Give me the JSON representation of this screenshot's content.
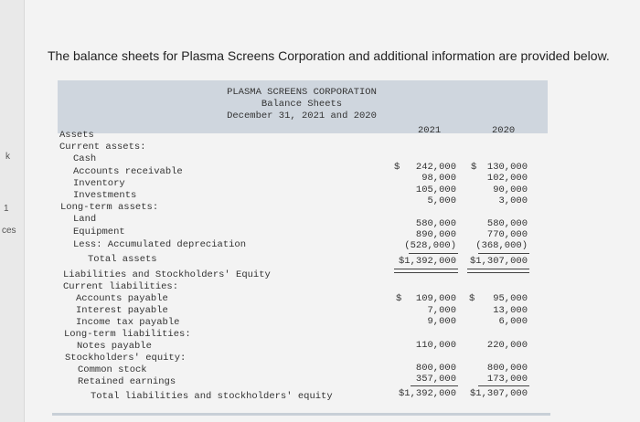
{
  "sidebar": {
    "frag_k": "k",
    "frag_1": "1",
    "frag_ces": "ces"
  },
  "intro": "The balance sheets for Plasma Screens Corporation and additional information are provided below.",
  "header": {
    "company": "PLASMA SCREENS CORPORATION",
    "title": "Balance Sheets",
    "date": "December 31, 2021 and 2020",
    "col_2021": "2021",
    "col_2020": "2020"
  },
  "rows": [
    {
      "label": "Assets"
    },
    {
      "label": "Current assets:"
    },
    {
      "label": "Cash",
      "v2021": "242,000",
      "v2020": "130,000",
      "dollar": true
    },
    {
      "label": "Accounts receivable",
      "v2021": "98,000",
      "v2020": "102,000"
    },
    {
      "label": "Inventory",
      "v2021": "105,000",
      "v2020": "90,000"
    },
    {
      "label": "Investments",
      "v2021": "5,000",
      "v2020": "3,000"
    },
    {
      "label": "Long-term assets:"
    },
    {
      "label": "Land",
      "v2021": "580,000",
      "v2020": "580,000"
    },
    {
      "label": "Equipment",
      "v2021": "890,000",
      "v2020": "770,000"
    },
    {
      "label": "Less: Accumulated depreciation",
      "v2021": "(528,000)",
      "v2020": "(368,000)"
    },
    {
      "label": "Total assets",
      "v2021": "$1,392,000",
      "v2020": "$1,307,000"
    },
    {
      "label": "Liabilities and Stockholders' Equity"
    },
    {
      "label": "Current liabilities:"
    },
    {
      "label": "Accounts payable",
      "v2021": "109,000",
      "v2020": "95,000",
      "dollar": true
    },
    {
      "label": "Interest payable",
      "v2021": "7,000",
      "v2020": "13,000"
    },
    {
      "label": "Income tax payable",
      "v2021": "9,000",
      "v2020": "6,000"
    },
    {
      "label": "Long-term liabilities:"
    },
    {
      "label": "Notes payable",
      "v2021": "110,000",
      "v2020": "220,000"
    },
    {
      "label": "Stockholders' equity:"
    },
    {
      "label": "Common stock",
      "v2021": "800,000",
      "v2020": "800,000"
    },
    {
      "label": "Retained earnings",
      "v2021": "357,000",
      "v2020": "173,000"
    },
    {
      "label": "Total liabilities and stockholders' equity",
      "v2021": "$1,392,000",
      "v2020": "$1,307,000"
    }
  ]
}
